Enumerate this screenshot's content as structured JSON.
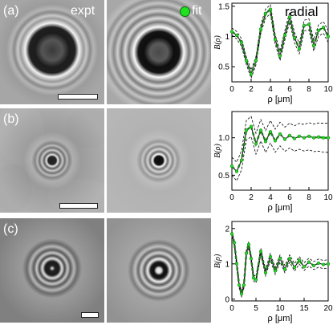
{
  "panels": [
    {
      "label": "(a)",
      "expt_label": "expt",
      "fit_label": "fit"
    },
    {
      "label": "(b)"
    },
    {
      "label": "(c)"
    }
  ],
  "plot_title": "radial",
  "colors": {
    "fit": "#1e7a1e",
    "data": "#000000",
    "fit_marker": "#20e020"
  },
  "chart_data": [
    {
      "type": "line",
      "xlabel": "ρ [μm]",
      "ylabel": "B(ρ)",
      "xlim": [
        0,
        10
      ],
      "ylim": [
        0.25,
        1.55
      ],
      "xticks": [
        "0",
        "2",
        "4",
        "6",
        "8",
        "10"
      ],
      "yticks": [
        "0.5",
        "1",
        "1.5"
      ],
      "ytick_values": [
        0.5,
        1.0,
        1.5
      ],
      "series": [
        {
          "x": [
            0,
            0.5,
            1.0,
            1.5,
            2.0,
            2.5,
            3.0,
            3.5,
            4.0,
            4.5,
            5.0,
            5.5,
            6.0,
            6.5,
            7.0,
            7.5,
            8.0,
            8.5,
            9.0,
            9.5,
            10.0
          ],
          "y": [
            1.08,
            1.02,
            0.9,
            0.6,
            0.38,
            0.6,
            1.12,
            1.38,
            1.45,
            0.95,
            0.68,
            1.02,
            1.32,
            0.98,
            0.8,
            1.18,
            1.2,
            0.85,
            1.1,
            1.15,
            1.0
          ],
          "band": 0.1
        }
      ]
    },
    {
      "type": "line",
      "xlabel": "ρ [μm]",
      "ylabel": "B(ρ)",
      "xlim": [
        0,
        10
      ],
      "ylim": [
        0.3,
        1.35
      ],
      "xticks": [
        "0",
        "2",
        "4",
        "6",
        "8",
        "10"
      ],
      "yticks": [
        "0.5",
        "1.0"
      ],
      "ytick_values": [
        0.5,
        1.0
      ],
      "series": [
        {
          "x": [
            0,
            0.5,
            1.0,
            1.5,
            2.0,
            2.5,
            3.0,
            3.5,
            4.0,
            4.5,
            5.0,
            5.5,
            6.0,
            6.5,
            7.0,
            7.5,
            8.0,
            8.5,
            9.0,
            9.5,
            10.0
          ],
          "y": [
            0.62,
            0.55,
            0.7,
            1.1,
            1.15,
            0.92,
            1.1,
            0.95,
            1.08,
            0.96,
            1.05,
            0.98,
            1.03,
            0.99,
            1.02,
            1.0,
            1.02,
            1.0,
            1.01,
            1.0,
            1.0
          ],
          "band": 0.2
        }
      ]
    },
    {
      "type": "line",
      "xlabel": "ρ [μm]",
      "ylabel": "B(ρ)",
      "xlim": [
        0,
        20
      ],
      "ylim": [
        -0.05,
        2.2
      ],
      "xticks": [
        "0",
        "5",
        "10",
        "15",
        "20"
      ],
      "yticks": [
        "0",
        "1",
        "2"
      ],
      "ytick_values": [
        0,
        1,
        2
      ],
      "series": [
        {
          "x": [
            0,
            0.5,
            1.0,
            1.5,
            2.0,
            2.5,
            3.0,
            3.5,
            4.0,
            4.5,
            5.0,
            6.0,
            7.0,
            8.0,
            9.0,
            10.0,
            11.0,
            12.0,
            13.0,
            14.0,
            15.0,
            16.0,
            17.0,
            18.0,
            19.0,
            20.0
          ],
          "y": [
            1.85,
            1.6,
            1.0,
            0.4,
            0.15,
            0.4,
            1.3,
            1.55,
            1.15,
            0.6,
            0.55,
            1.35,
            0.75,
            1.2,
            0.8,
            1.15,
            0.85,
            1.15,
            0.9,
            1.1,
            0.92,
            1.05,
            0.95,
            1.02,
            0.98,
            1.0
          ],
          "band": 0.12
        }
      ]
    }
  ]
}
